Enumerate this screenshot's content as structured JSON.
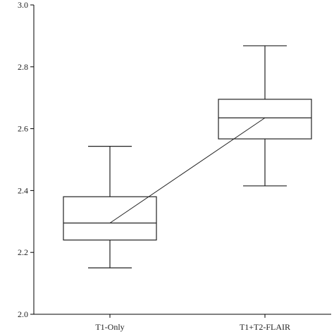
{
  "chart_data": {
    "type": "box",
    "categories": [
      "T1-Only",
      "T1+T2-FLAIR"
    ],
    "boxes": [
      {
        "category": "T1-Only",
        "min": 2.15,
        "q1": 2.24,
        "median": 2.295,
        "q3": 2.38,
        "max": 2.543
      },
      {
        "category": "T1+T2-FLAIR",
        "min": 2.415,
        "q1": 2.567,
        "median": 2.635,
        "q3": 2.695,
        "max": 2.868
      }
    ],
    "median_connector": true,
    "title": "",
    "xlabel": "",
    "ylabel": "",
    "ylim": [
      2.0,
      3.0
    ],
    "yticks": [
      2.0,
      2.2,
      2.4,
      2.6,
      2.8,
      3.0
    ],
    "ytick_labels": [
      "2.0",
      "2.2",
      "2.4",
      "2.6",
      "2.8",
      "3.0"
    ],
    "grid": false,
    "colors": {
      "line": "#222222",
      "fill": "#ffffff",
      "axis": "#000000"
    }
  }
}
